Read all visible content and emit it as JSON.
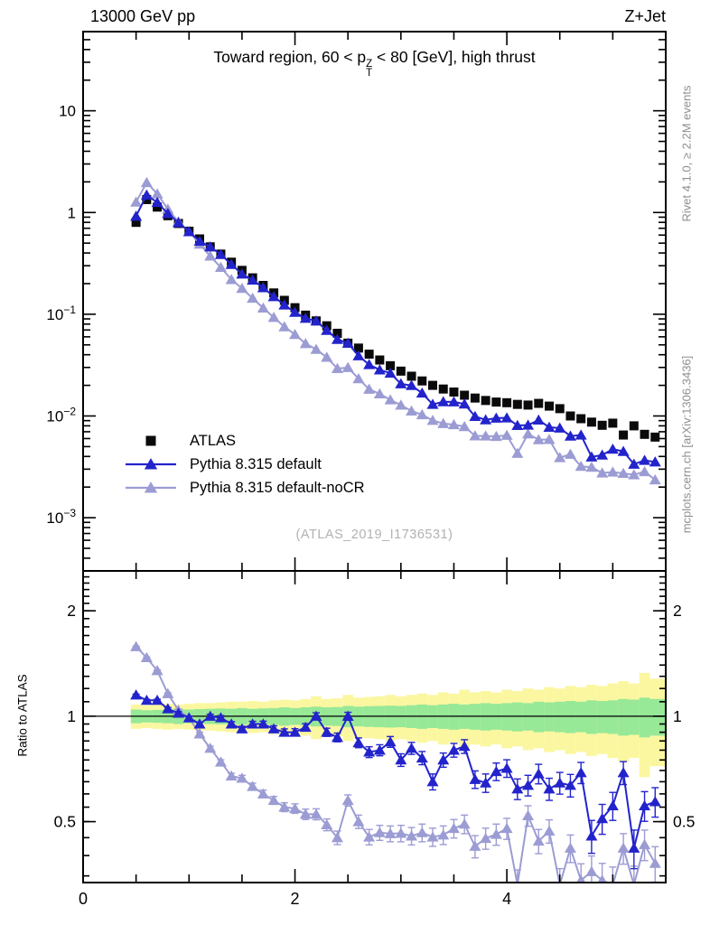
{
  "header": {
    "left": "13000 GeV pp",
    "right": "Z+Jet"
  },
  "panel_title": {
    "pre": "Toward region, 60 < ",
    "particle": "p",
    "sup": "Z",
    "sub": "T",
    "post": " < 80 [GeV], high thrust"
  },
  "watermark": {
    "text": "(ATLAS_2019_I1736531)"
  },
  "side_notes": {
    "top": "Rivet 4.1.0, ≥ 2.2M events",
    "bottom": "mcplots.cern.ch [arXiv:1306.3436]"
  },
  "colors": {
    "axis": "#000000",
    "atlas": "#0a0a0a",
    "pythia_default": "#2323cc",
    "pythia_nocr": "#9c9cd4",
    "band_green": "#97e897",
    "band_yellow": "#fbf7a0",
    "watermark": "#b2b2b2",
    "side_note": "#8f8f8f"
  },
  "legend": {
    "items": [
      {
        "label": "ATLAS",
        "marker": "square",
        "color": "#0a0a0a",
        "line": false
      },
      {
        "label": "Pythia 8.315 default",
        "marker": "triangle",
        "color": "#2323cc",
        "line": true
      },
      {
        "label": "Pythia 8.315 default-noCR",
        "marker": "triangle",
        "color": "#9c9cd4",
        "line": true
      }
    ]
  },
  "chart_data": [
    {
      "id": "spectrum",
      "type": "line",
      "title": "Toward region, 60 < pT(Z) < 80 [GeV], high thrust",
      "x_start": 0.5,
      "x_step": 0.1,
      "xlim": [
        0,
        5.5
      ],
      "ylim_log": [
        0.0003,
        60
      ],
      "xticks": {
        "major": [
          0,
          2,
          4
        ],
        "labels": [
          "0",
          "2",
          "4"
        ],
        "minor_step": 0.5
      },
      "yticks": [
        {
          "value": 10,
          "base": "10",
          "exp": ""
        },
        {
          "value": 1,
          "base": "1",
          "exp": ""
        },
        {
          "value": 0.1,
          "base": "10",
          "exp": "−1"
        },
        {
          "value": 0.01,
          "base": "10",
          "exp": "−2"
        },
        {
          "value": 0.001,
          "base": "10",
          "exp": "−3"
        }
      ],
      "series": [
        {
          "name": "ATLAS",
          "marker": "square",
          "color": "#0a0a0a",
          "line": false,
          "values": [
            0.8,
            1.34,
            1.13,
            0.93,
            0.78,
            0.655,
            0.55,
            0.46,
            0.39,
            0.325,
            0.27,
            0.228,
            0.192,
            0.162,
            0.137,
            0.116,
            0.098,
            0.086,
            0.077,
            0.065,
            0.052,
            0.0465,
            0.0405,
            0.0355,
            0.0312,
            0.0276,
            0.0246,
            0.0221,
            0.02,
            0.0184,
            0.0172,
            0.016,
            0.015,
            0.0142,
            0.0137,
            0.0135,
            0.013,
            0.0128,
            0.0133,
            0.0125,
            0.0118,
            0.01,
            0.0094,
            0.0087,
            0.0081,
            0.0085,
            0.0065,
            0.008,
            0.0066,
            0.0062
          ]
        },
        {
          "name": "Pythia 8.315 default",
          "marker": "triangle",
          "color": "#2323cc",
          "line": true,
          "derived": "ATLAS values × ratio series 'Pythia 8.315 default'"
        },
        {
          "name": "Pythia 8.315 default-noCR",
          "marker": "triangle",
          "color": "#9c9cd4",
          "line": true,
          "derived": "ATLAS values × ratio series 'Pythia 8.315 default-noCR'"
        }
      ]
    },
    {
      "id": "ratio",
      "type": "line",
      "ylabel": "Ratio to ATLAS",
      "x_start": 0.5,
      "x_step": 0.1,
      "xlim": [
        0,
        5.5
      ],
      "ylim_log": [
        0.335,
        2.6
      ],
      "yticks": [
        {
          "value": 2,
          "label": "2"
        },
        {
          "value": 1,
          "label": "1"
        },
        {
          "value": 0.5,
          "label": "0.5"
        }
      ],
      "reference_line": 1,
      "bands": {
        "green_halfwidth": [
          0.045,
          0.04,
          0.042,
          0.045,
          0.05,
          0.045,
          0.048,
          0.05,
          0.052,
          0.05,
          0.055,
          0.05,
          0.053,
          0.055,
          0.06,
          0.055,
          0.06,
          0.065,
          0.06,
          0.062,
          0.07,
          0.065,
          0.068,
          0.07,
          0.072,
          0.07,
          0.075,
          0.08,
          0.075,
          0.08,
          0.085,
          0.08,
          0.085,
          0.09,
          0.085,
          0.09,
          0.095,
          0.09,
          0.1,
          0.095,
          0.1,
          0.105,
          0.1,
          0.11,
          0.105,
          0.11,
          0.12,
          0.115,
          0.13,
          0.12
        ],
        "yellow_halfwidth": [
          0.08,
          0.075,
          0.08,
          0.085,
          0.08,
          0.085,
          0.09,
          0.09,
          0.095,
          0.1,
          0.1,
          0.105,
          0.1,
          0.11,
          0.115,
          0.11,
          0.12,
          0.14,
          0.12,
          0.125,
          0.15,
          0.13,
          0.135,
          0.14,
          0.15,
          0.14,
          0.15,
          0.16,
          0.15,
          0.17,
          0.16,
          0.19,
          0.17,
          0.18,
          0.17,
          0.19,
          0.18,
          0.2,
          0.19,
          0.21,
          0.2,
          0.22,
          0.21,
          0.23,
          0.22,
          0.24,
          0.26,
          0.24,
          0.33,
          0.28
        ]
      },
      "series": [
        {
          "name": "Pythia 8.315 default",
          "marker": "triangle",
          "color": "#2323cc",
          "line": true,
          "values": [
            1.15,
            1.11,
            1.11,
            1.05,
            1.02,
            0.99,
            0.95,
            1.0,
            0.99,
            0.95,
            0.92,
            0.95,
            0.95,
            0.92,
            0.9,
            0.9,
            0.93,
            1.0,
            0.9,
            0.87,
            1.0,
            0.84,
            0.79,
            0.8,
            0.845,
            0.75,
            0.81,
            0.76,
            0.65,
            0.75,
            0.8,
            0.82,
            0.66,
            0.645,
            0.695,
            0.71,
            0.62,
            0.635,
            0.685,
            0.62,
            0.645,
            0.635,
            0.69,
            0.455,
            0.51,
            0.555,
            0.69,
            0.42,
            0.555,
            0.57
          ],
          "errors": [
            0.006,
            0.007,
            0.008,
            0.009,
            0.01,
            0.011,
            0.012,
            0.013,
            0.014,
            0.015,
            0.016,
            0.017,
            0.018,
            0.019,
            0.02,
            0.021,
            0.022,
            0.023,
            0.024,
            0.025,
            0.026,
            0.027,
            0.028,
            0.029,
            0.03,
            0.031,
            0.032,
            0.033,
            0.034,
            0.035,
            0.036,
            0.037,
            0.038,
            0.039,
            0.04,
            0.041,
            0.042,
            0.043,
            0.044,
            0.045,
            0.046,
            0.047,
            0.048,
            0.049,
            0.05,
            0.051,
            0.052,
            0.053,
            0.054,
            0.055
          ]
        },
        {
          "name": "Pythia 8.315 default-noCR",
          "marker": "triangle",
          "color": "#9c9cd4",
          "line": true,
          "values": [
            1.58,
            1.47,
            1.35,
            1.16,
            1.04,
            0.99,
            0.89,
            0.81,
            0.74,
            0.675,
            0.665,
            0.63,
            0.6,
            0.575,
            0.55,
            0.545,
            0.525,
            0.525,
            0.49,
            0.45,
            0.575,
            0.5,
            0.452,
            0.465,
            0.462,
            0.463,
            0.455,
            0.465,
            0.452,
            0.458,
            0.478,
            0.492,
            0.425,
            0.448,
            0.46,
            0.478,
            0.33,
            0.52,
            0.44,
            0.47,
            0.33,
            0.42,
            0.34,
            0.36,
            0.34,
            0.33,
            0.42,
            0.33,
            0.43,
            0.38
          ],
          "errors": [
            0.005,
            0.006,
            0.006,
            0.007,
            0.008,
            0.009,
            0.01,
            0.011,
            0.011,
            0.012,
            0.013,
            0.014,
            0.015,
            0.015,
            0.016,
            0.017,
            0.018,
            0.019,
            0.019,
            0.02,
            0.021,
            0.022,
            0.023,
            0.023,
            0.024,
            0.025,
            0.026,
            0.027,
            0.027,
            0.028,
            0.029,
            0.03,
            0.031,
            0.031,
            0.032,
            0.033,
            0.034,
            0.035,
            0.035,
            0.036,
            0.037,
            0.038,
            0.039,
            0.039,
            0.04,
            0.041,
            0.042,
            0.043,
            0.043,
            0.044
          ]
        }
      ]
    }
  ]
}
